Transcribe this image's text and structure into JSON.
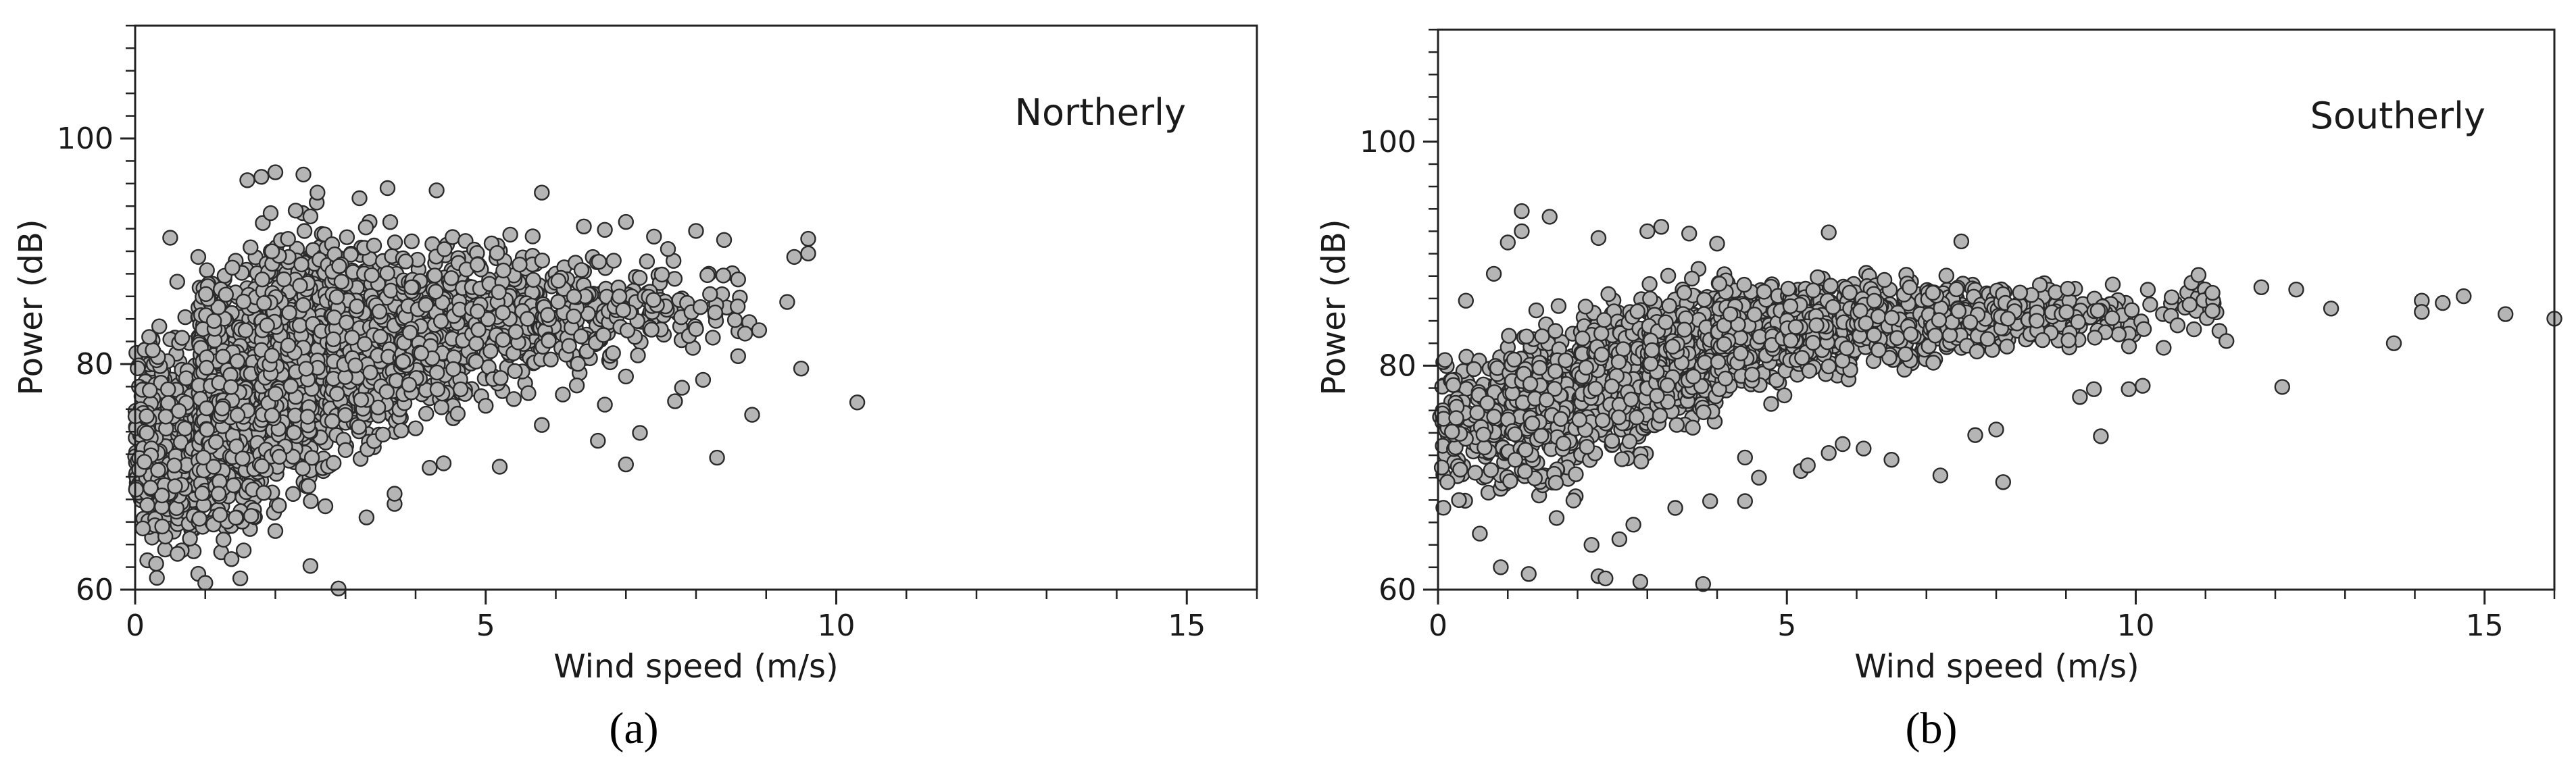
{
  "chart_data": [
    {
      "type": "scatter",
      "panel_label": "(a)",
      "annotation": "Northerly",
      "xlabel": "Wind speed (m/s)",
      "ylabel": "Power (dB)",
      "xlim": [
        0,
        16
      ],
      "ylim": [
        60,
        110
      ],
      "x_ticks": [
        0,
        5,
        10,
        15
      ],
      "y_ticks": [
        60,
        80,
        100
      ],
      "x_minor_step": 1,
      "y_minor_step": 2,
      "grid": false,
      "marker_color": "#b5b5b5",
      "cloud": [
        {
          "x": [
            0,
            0.9
          ],
          "y": [
            60,
            86
          ],
          "n": 450
        },
        {
          "x": [
            0.9,
            1.8
          ],
          "y": [
            61,
            93
          ],
          "n": 650
        },
        {
          "x": [
            1.8,
            2.8
          ],
          "y": [
            65,
            96
          ],
          "n": 600
        },
        {
          "x": [
            2.8,
            3.8
          ],
          "y": [
            69,
            94
          ],
          "n": 380
        },
        {
          "x": [
            3.8,
            4.8
          ],
          "y": [
            73,
            93
          ],
          "n": 320
        },
        {
          "x": [
            4.8,
            5.8
          ],
          "y": [
            76,
            93
          ],
          "n": 220
        },
        {
          "x": [
            5.8,
            6.8
          ],
          "y": [
            78,
            91
          ],
          "n": 140
        },
        {
          "x": [
            6.8,
            7.8
          ],
          "y": [
            80,
            90
          ],
          "n": 70
        },
        {
          "x": [
            7.8,
            8.8
          ],
          "y": [
            81,
            89
          ],
          "n": 22
        }
      ],
      "points": [
        {
          "x": 0.3,
          "y": 62.3
        },
        {
          "x": 0.9,
          "y": 61.4
        },
        {
          "x": 1.5,
          "y": 61.0
        },
        {
          "x": 1.0,
          "y": 60.6
        },
        {
          "x": 2.9,
          "y": 60.1
        },
        {
          "x": 2.5,
          "y": 62.1
        },
        {
          "x": 3.3,
          "y": 66.4
        },
        {
          "x": 2.0,
          "y": 65.2
        },
        {
          "x": 1.6,
          "y": 96.3
        },
        {
          "x": 1.8,
          "y": 96.6
        },
        {
          "x": 2.4,
          "y": 96.8
        },
        {
          "x": 2.0,
          "y": 97.0
        },
        {
          "x": 2.6,
          "y": 95.2
        },
        {
          "x": 3.6,
          "y": 95.6
        },
        {
          "x": 4.3,
          "y": 95.4
        },
        {
          "x": 5.8,
          "y": 95.2
        },
        {
          "x": 3.2,
          "y": 94.7
        },
        {
          "x": 0.5,
          "y": 91.2
        },
        {
          "x": 0.9,
          "y": 89.5
        },
        {
          "x": 0.6,
          "y": 87.3
        },
        {
          "x": 0.2,
          "y": 82.4
        },
        {
          "x": 3.7,
          "y": 67.6
        },
        {
          "x": 3.7,
          "y": 68.5
        },
        {
          "x": 4.2,
          "y": 70.8
        },
        {
          "x": 4.4,
          "y": 71.2
        },
        {
          "x": 4.0,
          "y": 74.3
        },
        {
          "x": 4.6,
          "y": 75.6
        },
        {
          "x": 5.2,
          "y": 70.9
        },
        {
          "x": 5.0,
          "y": 76.3
        },
        {
          "x": 5.4,
          "y": 76.9
        },
        {
          "x": 5.8,
          "y": 74.6
        },
        {
          "x": 6.1,
          "y": 77.3
        },
        {
          "x": 6.3,
          "y": 78.1
        },
        {
          "x": 6.6,
          "y": 73.2
        },
        {
          "x": 6.7,
          "y": 76.4
        },
        {
          "x": 7.0,
          "y": 71.1
        },
        {
          "x": 7.2,
          "y": 73.9
        },
        {
          "x": 7.0,
          "y": 78.9
        },
        {
          "x": 7.7,
          "y": 76.7
        },
        {
          "x": 7.8,
          "y": 77.9
        },
        {
          "x": 7.9,
          "y": 82.5
        },
        {
          "x": 8.0,
          "y": 83.1
        },
        {
          "x": 8.0,
          "y": 91.8
        },
        {
          "x": 8.1,
          "y": 78.6
        },
        {
          "x": 8.2,
          "y": 86.2
        },
        {
          "x": 8.4,
          "y": 91.0
        },
        {
          "x": 8.6,
          "y": 87.5
        },
        {
          "x": 8.3,
          "y": 71.7
        },
        {
          "x": 8.7,
          "y": 82.7
        },
        {
          "x": 8.8,
          "y": 75.5
        },
        {
          "x": 8.6,
          "y": 80.7
        },
        {
          "x": 8.9,
          "y": 83.0
        },
        {
          "x": 9.3,
          "y": 85.5
        },
        {
          "x": 9.4,
          "y": 89.5
        },
        {
          "x": 9.5,
          "y": 79.6
        },
        {
          "x": 9.6,
          "y": 89.8
        },
        {
          "x": 9.6,
          "y": 91.1
        },
        {
          "x": 10.3,
          "y": 76.6
        },
        {
          "x": 7.0,
          "y": 92.6
        },
        {
          "x": 6.7,
          "y": 91.9
        },
        {
          "x": 7.4,
          "y": 91.3
        },
        {
          "x": 7.6,
          "y": 90.2
        },
        {
          "x": 7.3,
          "y": 89.1
        },
        {
          "x": 6.4,
          "y": 92.2
        }
      ]
    },
    {
      "type": "scatter",
      "panel_label": "(b)",
      "annotation": "Southerly",
      "xlabel": "Wind speed (m/s)",
      "ylabel": "Power (dB)",
      "xlim": [
        0,
        16
      ],
      "ylim": [
        60,
        110
      ],
      "x_ticks": [
        0,
        5,
        10,
        15
      ],
      "y_ticks": [
        60,
        80,
        100
      ],
      "x_minor_step": 1,
      "y_minor_step": 2,
      "grid": false,
      "marker_color": "#b5b5b5",
      "cloud": [
        {
          "x": [
            0,
            1
          ],
          "y": [
            66,
            84
          ],
          "n": 150
        },
        {
          "x": [
            1,
            2
          ],
          "y": [
            66,
            87
          ],
          "n": 260
        },
        {
          "x": [
            2,
            3
          ],
          "y": [
            69,
            88
          ],
          "n": 330
        },
        {
          "x": [
            3,
            4
          ],
          "y": [
            73,
            89
          ],
          "n": 330
        },
        {
          "x": [
            4,
            5
          ],
          "y": [
            76,
            89
          ],
          "n": 300
        },
        {
          "x": [
            5,
            6
          ],
          "y": [
            78,
            89
          ],
          "n": 260
        },
        {
          "x": [
            6,
            7
          ],
          "y": [
            79,
            89
          ],
          "n": 200
        },
        {
          "x": [
            7,
            8
          ],
          "y": [
            80,
            89
          ],
          "n": 170
        },
        {
          "x": [
            8,
            9
          ],
          "y": [
            81,
            88
          ],
          "n": 110
        },
        {
          "x": [
            9,
            10
          ],
          "y": [
            81,
            88
          ],
          "n": 60
        },
        {
          "x": [
            10,
            11.2
          ],
          "y": [
            82,
            88
          ],
          "n": 25
        }
      ],
      "points": [
        {
          "x": 0.3,
          "y": 68.0
        },
        {
          "x": 0.6,
          "y": 65.0
        },
        {
          "x": 0.9,
          "y": 62.0
        },
        {
          "x": 1.3,
          "y": 61.4
        },
        {
          "x": 2.3,
          "y": 61.2
        },
        {
          "x": 2.4,
          "y": 61.0
        },
        {
          "x": 2.9,
          "y": 60.7
        },
        {
          "x": 3.8,
          "y": 60.5
        },
        {
          "x": 2.2,
          "y": 64.0
        },
        {
          "x": 2.6,
          "y": 64.5
        },
        {
          "x": 1.7,
          "y": 66.4
        },
        {
          "x": 2.8,
          "y": 65.8
        },
        {
          "x": 3.4,
          "y": 67.3
        },
        {
          "x": 3.9,
          "y": 67.9
        },
        {
          "x": 4.4,
          "y": 67.9
        },
        {
          "x": 4.6,
          "y": 70.0
        },
        {
          "x": 4.4,
          "y": 71.8
        },
        {
          "x": 5.2,
          "y": 70.6
        },
        {
          "x": 5.3,
          "y": 71.1
        },
        {
          "x": 5.6,
          "y": 72.2
        },
        {
          "x": 5.8,
          "y": 73.0
        },
        {
          "x": 6.1,
          "y": 72.6
        },
        {
          "x": 6.5,
          "y": 71.6
        },
        {
          "x": 7.2,
          "y": 70.2
        },
        {
          "x": 7.7,
          "y": 73.8
        },
        {
          "x": 8.1,
          "y": 69.6
        },
        {
          "x": 8.0,
          "y": 74.3
        },
        {
          "x": 9.2,
          "y": 77.2
        },
        {
          "x": 9.4,
          "y": 77.9
        },
        {
          "x": 9.5,
          "y": 73.7
        },
        {
          "x": 9.9,
          "y": 77.9
        },
        {
          "x": 10.1,
          "y": 78.2
        },
        {
          "x": 10.4,
          "y": 81.6
        },
        {
          "x": 10.6,
          "y": 83.6
        },
        {
          "x": 10.8,
          "y": 87.4
        },
        {
          "x": 10.9,
          "y": 88.1
        },
        {
          "x": 11.1,
          "y": 86.5
        },
        {
          "x": 11.1,
          "y": 84.9
        },
        {
          "x": 11.2,
          "y": 83.1
        },
        {
          "x": 11.3,
          "y": 82.2
        },
        {
          "x": 11.8,
          "y": 87.0
        },
        {
          "x": 12.1,
          "y": 78.1
        },
        {
          "x": 12.3,
          "y": 86.8
        },
        {
          "x": 12.8,
          "y": 85.1
        },
        {
          "x": 13.7,
          "y": 82.0
        },
        {
          "x": 14.1,
          "y": 85.8
        },
        {
          "x": 14.1,
          "y": 84.8
        },
        {
          "x": 14.4,
          "y": 85.6
        },
        {
          "x": 14.7,
          "y": 86.2
        },
        {
          "x": 15.3,
          "y": 84.6
        },
        {
          "x": 16.0,
          "y": 84.2
        },
        {
          "x": 1.2,
          "y": 92.0
        },
        {
          "x": 1.2,
          "y": 93.8
        },
        {
          "x": 1.0,
          "y": 91.0
        },
        {
          "x": 1.6,
          "y": 93.3
        },
        {
          "x": 2.3,
          "y": 91.4
        },
        {
          "x": 3.0,
          "y": 92.0
        },
        {
          "x": 3.2,
          "y": 92.4
        },
        {
          "x": 3.6,
          "y": 91.8
        },
        {
          "x": 4.0,
          "y": 90.9
        },
        {
          "x": 5.6,
          "y": 91.9
        },
        {
          "x": 7.5,
          "y": 91.1
        },
        {
          "x": 0.1,
          "y": 80.5
        },
        {
          "x": 0.2,
          "y": 74.1
        },
        {
          "x": 0.4,
          "y": 85.8
        },
        {
          "x": 0.8,
          "y": 88.2
        }
      ]
    }
  ]
}
